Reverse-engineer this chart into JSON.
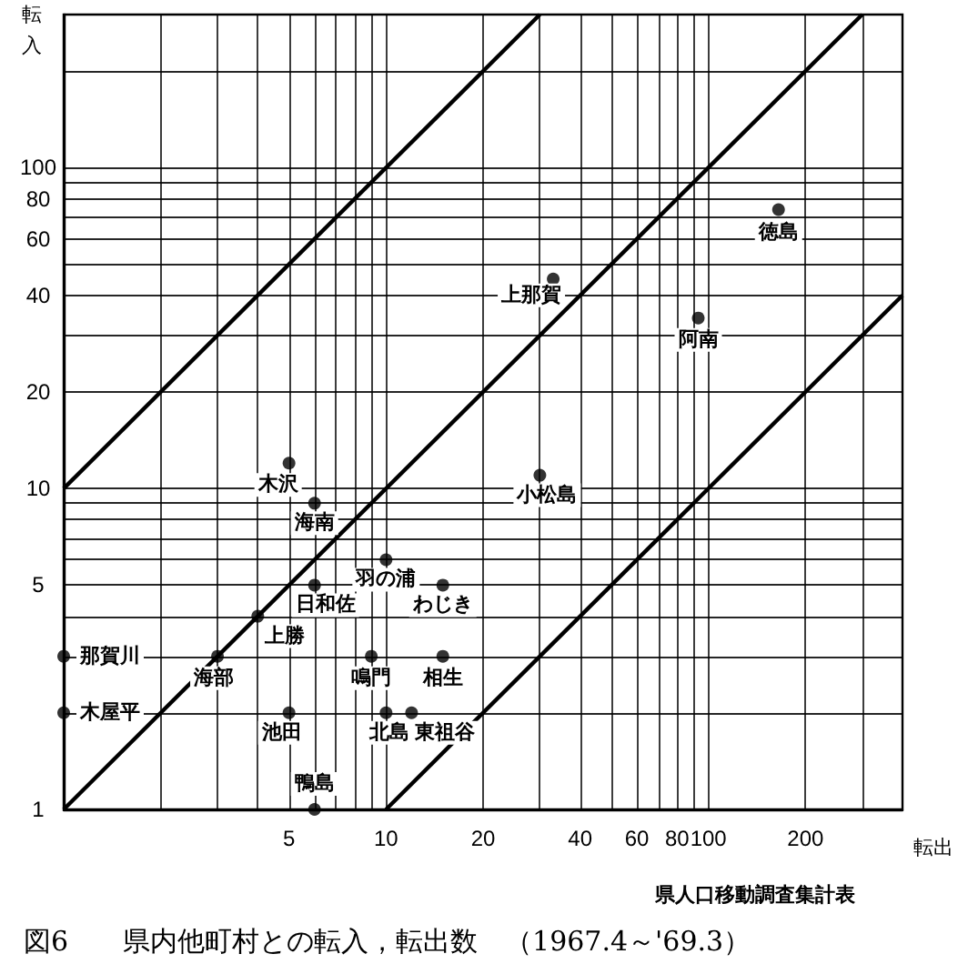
{
  "chart_data": {
    "type": "scatter",
    "title": "図6　　県内他町村との転入，転出数　（1967.4～'69.3）",
    "xlabel": "転出",
    "ylabel": "転入",
    "annotations": [
      "県人口移動調査集計表",
      {
        "text": "木沢",
        "x": 5,
        "y": 12
      },
      {
        "text": "海南",
        "x": 6,
        "y": 9
      },
      {
        "text": "羽の浦",
        "x": 10,
        "y": 6
      },
      {
        "text": "日和佐",
        "x": 6,
        "y": 5
      },
      {
        "text": "わじき",
        "x": 15,
        "y": 5
      },
      {
        "text": "上勝",
        "x": 4,
        "y": 4
      },
      {
        "text": "那賀川",
        "x": 1,
        "y": 3
      },
      {
        "text": "海部",
        "x": 3,
        "y": 3
      },
      {
        "text": "鳴門",
        "x": 9,
        "y": 3
      },
      {
        "text": "相生",
        "x": 15,
        "y": 3
      },
      {
        "text": "木屋平",
        "x": 1,
        "y": 2
      },
      {
        "text": "池田",
        "x": 5,
        "y": 2
      },
      {
        "text": "北島",
        "x": 10,
        "y": 2
      },
      {
        "text": "東祖谷",
        "x": 12,
        "y": 2
      },
      {
        "text": "鴨島",
        "x": 6,
        "y": 1
      },
      {
        "text": "小松島",
        "x": 30,
        "y": 11
      },
      {
        "text": "上那賀",
        "x": 33,
        "y": 45
      },
      {
        "text": "徳島",
        "x": 165,
        "y": 74
      },
      {
        "text": "阿南",
        "x": 93,
        "y": 34
      }
    ],
    "series": [
      {
        "color": "#000000",
        "marker": "circle",
        "x": [
          5,
          6,
          10,
          6,
          15,
          4,
          1,
          3,
          9,
          15,
          1,
          5,
          10,
          12,
          6,
          30,
          33,
          165,
          93
        ],
        "values": [
          12,
          9,
          6,
          5,
          5,
          4,
          3,
          3,
          3,
          3,
          2,
          2,
          2,
          2,
          1,
          11,
          45,
          74,
          34
        ]
      },
      {
        "type": "line",
        "color": "#000000",
        "marker": "none",
        "x": [
          1,
          300
        ],
        "values": [
          1,
          300
        ]
      },
      {
        "type": "line",
        "color": "#000000",
        "marker": "none",
        "x": [
          1,
          30
        ],
        "values": [
          10,
          300
        ]
      },
      {
        "type": "line",
        "color": "#000000",
        "marker": "none",
        "x": [
          10,
          400
        ],
        "values": [
          1,
          40
        ]
      }
    ],
    "log": "xy",
    "xlim": [
      1,
      400
    ],
    "ylim": [
      1,
      300
    ],
    "xticks": [
      {
        "value": 2,
        "label": null
      },
      {
        "value": 3,
        "label": null
      },
      {
        "value": 4,
        "label": null
      },
      5,
      {
        "value": 6,
        "label": null
      },
      {
        "value": 7,
        "label": null
      },
      {
        "value": 8,
        "label": null
      },
      {
        "value": 9,
        "label": null
      },
      10,
      20,
      {
        "value": 30,
        "label": null
      },
      40,
      {
        "value": 50,
        "label": null
      },
      60,
      {
        "value": 70,
        "label": null
      },
      80,
      {
        "value": 90,
        "label": null
      },
      100,
      200,
      {
        "value": 300,
        "label": null
      }
    ],
    "yticks": [
      1,
      {
        "value": 2,
        "label": null
      },
      {
        "value": 3,
        "label": null
      },
      {
        "value": 4,
        "label": null
      },
      5,
      {
        "value": 6,
        "label": null
      },
      {
        "value": 7,
        "label": null
      },
      {
        "value": 8,
        "label": null
      },
      {
        "value": 9,
        "label": null
      },
      10,
      20,
      {
        "value": 30,
        "label": null
      },
      40,
      {
        "value": 50,
        "label": null
      },
      60,
      {
        "value": 70,
        "label": null
      },
      80,
      {
        "value": 90,
        "label": null
      },
      100,
      {
        "value": 200,
        "label": null
      }
    ],
    "grid": true
  }
}
